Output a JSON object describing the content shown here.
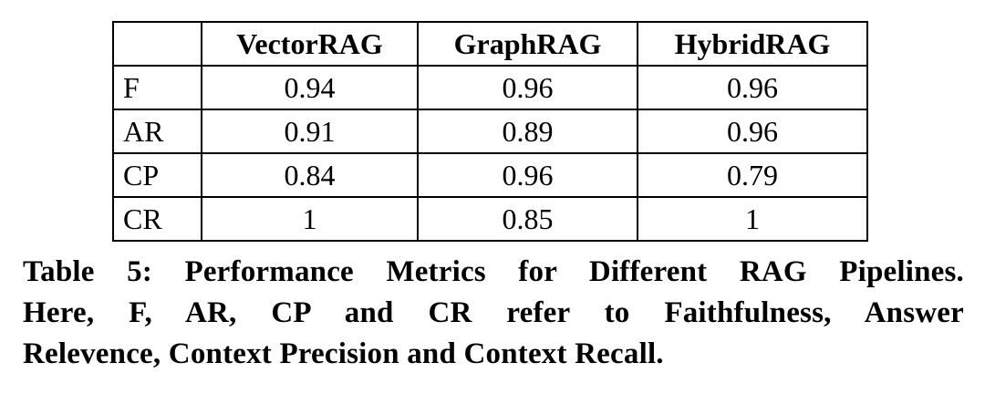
{
  "table": {
    "columns": [
      "",
      "VectorRAG",
      "GraphRAG",
      "HybridRAG"
    ],
    "rows": [
      {
        "label": "F",
        "values": [
          "0.94",
          "0.96",
          "0.96"
        ]
      },
      {
        "label": "AR",
        "values": [
          "0.91",
          "0.89",
          "0.96"
        ]
      },
      {
        "label": "CP",
        "values": [
          "0.84",
          "0.96",
          "0.79"
        ]
      },
      {
        "label": "CR",
        "values": [
          "1",
          "0.85",
          "1"
        ]
      }
    ]
  },
  "caption": {
    "lines": [
      "Table 5: Performance Metrics for Different RAG Pipelines.",
      "Here, F, AR, CP and CR refer to Faithfulness, Answer",
      "Relevence, Context Precision and Context Recall."
    ]
  },
  "colors": {
    "text": "#000000",
    "background": "#ffffff",
    "border": "#000000"
  },
  "chart_data": {
    "type": "table",
    "title": "Table 5: Performance Metrics for Different RAG Pipelines",
    "columns": [
      "VectorRAG",
      "GraphRAG",
      "HybridRAG"
    ],
    "row_labels": [
      "F",
      "AR",
      "CP",
      "CR"
    ],
    "row_label_meanings": [
      "Faithfulness",
      "Answer Relevence",
      "Context Precision",
      "Context Recall"
    ],
    "series": [
      {
        "name": "VectorRAG",
        "values": [
          0.94,
          0.91,
          0.84,
          1
        ]
      },
      {
        "name": "GraphRAG",
        "values": [
          0.96,
          0.89,
          0.96,
          0.85
        ]
      },
      {
        "name": "HybridRAG",
        "values": [
          0.96,
          0.96,
          0.79,
          1
        ]
      }
    ]
  }
}
